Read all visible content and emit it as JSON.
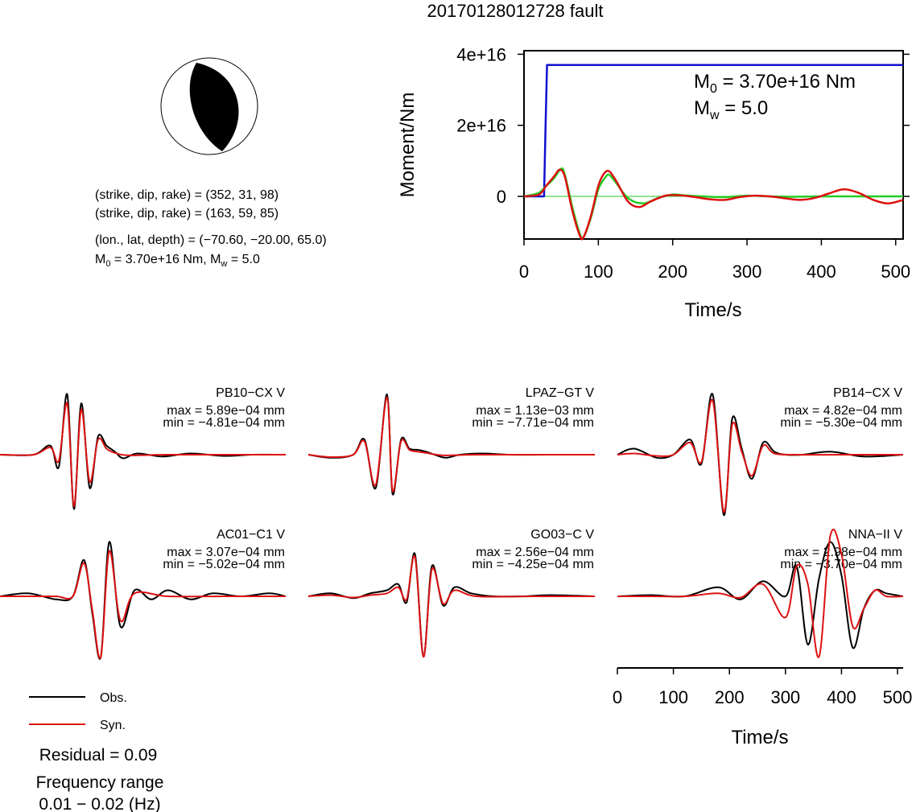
{
  "title": "20170128012728 fault",
  "mechanism": {
    "plane1": "(strike, dip, rake) = (352, 31, 98)",
    "plane2": "(strike, dip, rake) = (163, 59, 85)",
    "location": "(lon., lat, depth) = (−70.60, −20.00, 65.0)",
    "moment_pre": "M",
    "moment_sub": "0",
    "moment_post": " = 3.70e+16 Nm, M",
    "moment_sub2": "w",
    "moment_end": " = 5.0"
  },
  "moment_chart": {
    "ylabel": "Moment/Nm",
    "xlabel": "Time/s",
    "m0_sym": "M",
    "m0_sub": "0",
    "m0_val": " = 3.70e+16 Nm",
    "mw_sym": "M",
    "mw_sub": "w",
    "mw_val": " = 5.0",
    "colors": {
      "cumulative": "#1010d0",
      "rate_green": "#22cc22",
      "rate_red": "#dd1111"
    }
  },
  "chart_data": [
    {
      "type": "line",
      "name": "moment-function",
      "xlabel": "Time/s",
      "ylabel": "Moment/Nm",
      "xlim": [
        0,
        510
      ],
      "ylim": [
        -1.2e+16,
        4.1e+16
      ],
      "x_ticks": [
        0,
        100,
        200,
        300,
        400,
        500
      ],
      "x_tick_labels": [
        "0",
        "100",
        "200",
        "300",
        "400",
        "500"
      ],
      "y_ticks": [
        0,
        2e+16,
        4e+16
      ],
      "y_tick_labels": [
        "0",
        "2e+16",
        "4e+16"
      ],
      "series": [
        {
          "color": "#1010d0",
          "x": [
            0,
            27,
            29,
            31,
            510
          ],
          "y": [
            0,
            0,
            2e+16,
            3.7e+16,
            3.7e+16
          ]
        },
        {
          "color": "#22cc22",
          "x": [
            0,
            20,
            30,
            40,
            50,
            55,
            65,
            75,
            80,
            90,
            100,
            110,
            115,
            125,
            140,
            160,
            180,
            200,
            215,
            240,
            270,
            300,
            330,
            360,
            400,
            450,
            510
          ],
          "y": [
            0,
            1000000000000000.0,
            3000000000000000.0,
            5000000000000000.0,
            7800000000000000.0,
            6000000000000000.0,
            -3000000000000000.0,
            -1.05e+16,
            -1.15e+16,
            -6000000000000000.0,
            2000000000000000.0,
            5500000000000000.0,
            6000000000000000.0,
            3500000000000000.0,
            -500000000000000.0,
            -2000000000000000.0,
            -500000000000000.0,
            500000000000000.0,
            300000000000000.0,
            0.0,
            -200000000000000.0,
            200000000000000.0,
            0.0,
            -100000000000000.0,
            0.0,
            0.0,
            0.0
          ]
        },
        {
          "color": "#dd1111",
          "x": [
            0,
            20,
            30,
            40,
            48,
            55,
            65,
            75,
            80,
            90,
            100,
            108,
            115,
            125,
            140,
            155,
            170,
            190,
            210,
            230,
            250,
            270,
            290,
            310,
            330,
            350,
            370,
            390,
            410,
            430,
            450,
            470,
            490,
            510
          ],
          "y": [
            0,
            500000000000000.0,
            3000000000000000.0,
            5500000000000000.0,
            7500000000000000.0,
            5500000000000000.0,
            -4000000000000000.0,
            -1.1e+16,
            -1.15e+16,
            -5500000000000000.0,
            3000000000000000.0,
            6500000000000000.0,
            7000000000000000.0,
            4000000000000000.0,
            -1500000000000000.0,
            -3000000000000000.0,
            -1500000000000000.0,
            200000000000000.0,
            300000000000000.0,
            -200000000000000.0,
            -800000000000000.0,
            -1000000000000000.0,
            -200000000000000.0,
            200000000000000.0,
            0.0,
            -500000000000000.0,
            -1000000000000000.0,
            -500000000000000.0,
            800000000000000.0,
            2000000000000000.0,
            1000000000000000.0,
            -1000000000000000.0,
            -2000000000000000.0,
            -1000000000000000.0
          ]
        }
      ]
    },
    {
      "type": "line",
      "name": "waveforms",
      "xlabel": "Time/s",
      "xlim": [
        0,
        510
      ],
      "x_ticks": [
        0,
        100,
        200,
        300,
        400,
        500
      ],
      "x_tick_labels": [
        "0",
        "100",
        "200",
        "300",
        "400",
        "500"
      ],
      "stations": [
        {
          "label": "PB10−CX V",
          "max": "max = 5.89e−04 mm",
          "min": "min = −4.81e−04 mm",
          "col": 0,
          "row": 0,
          "obs": {
            "x": [
              0,
              60,
              90,
              105,
              120,
              132,
              145,
              160,
              175,
              190,
              205,
              220,
              245,
              290,
              340,
              400,
              450,
              510
            ],
            "y": [
              0,
              0,
              0.15,
              -0.2,
              1.0,
              -0.9,
              0.85,
              -0.55,
              0.3,
              0.15,
              0.05,
              -0.06,
              0.02,
              -0.03,
              0.02,
              -0.02,
              0.0,
              0.0
            ]
          },
          "syn": {
            "x": [
              0,
              60,
              90,
              105,
              120,
              132,
              145,
              160,
              175,
              190,
              205,
              230,
              300,
              400,
              510
            ],
            "y": [
              0,
              0,
              0.12,
              -0.1,
              0.85,
              -0.85,
              0.75,
              -0.45,
              0.25,
              0.1,
              0.03,
              -0.01,
              0.0,
              0.0,
              0.0
            ]
          }
        },
        {
          "label": "LPAZ−GT V",
          "max": "max = 1.13e−03 mm",
          "min": "min = −7.71e−04 mm",
          "col": 1,
          "row": 0,
          "obs": {
            "x": [
              0,
              40,
              80,
              100,
              120,
              140,
              150,
              165,
              180,
              195,
              210,
              225,
              245,
              270,
              310,
              360,
              420,
              510
            ],
            "y": [
              0,
              -0.05,
              0.0,
              0.25,
              -0.55,
              1.0,
              -0.65,
              0.25,
              0.1,
              0.08,
              0.05,
              0.0,
              -0.05,
              0.0,
              0.02,
              0.0,
              0.0,
              0.0
            ]
          },
          "syn": {
            "x": [
              0,
              40,
              80,
              100,
              120,
              140,
              150,
              165,
              180,
              195,
              210,
              240,
              300,
              400,
              510
            ],
            "y": [
              0,
              -0.04,
              0.0,
              0.22,
              -0.5,
              0.95,
              -0.6,
              0.22,
              0.08,
              0.05,
              0.03,
              -0.01,
              0.0,
              0.0,
              0.0
            ]
          }
        },
        {
          "label": "PB14−CX V",
          "max": "max = 4.82e−04 mm",
          "min": "min = −5.30e−04 mm",
          "col": 2,
          "row": 0,
          "obs": {
            "x": [
              0,
              30,
              70,
              100,
              130,
              150,
              170,
              190,
              205,
              222,
              240,
              260,
              280,
              300,
              330,
              380,
              440,
              510
            ],
            "y": [
              0,
              0.1,
              -0.05,
              0.0,
              0.25,
              -0.15,
              1.0,
              -1.0,
              0.6,
              0.1,
              -0.4,
              0.2,
              0.05,
              0.0,
              0.0,
              0.05,
              -0.03,
              0.0
            ]
          },
          "syn": {
            "x": [
              0,
              30,
              70,
              100,
              130,
              150,
              170,
              190,
              205,
              222,
              240,
              260,
              280,
              320,
              400,
              510
            ],
            "y": [
              0,
              0.02,
              -0.02,
              0.0,
              0.2,
              -0.12,
              0.9,
              -0.95,
              0.5,
              0.05,
              -0.35,
              0.15,
              0.02,
              0.0,
              0.0,
              0.0
            ]
          }
        },
        {
          "label": "AC01−C1 V",
          "max": "max = 3.07e−04 mm",
          "min": "min = −5.02e−04 mm",
          "col": 0,
          "row": 1,
          "obs": {
            "x": [
              0,
              50,
              100,
              130,
              150,
              165,
              180,
              195,
              215,
              240,
              270,
              300,
              340,
              380,
              430,
              480,
              510
            ],
            "y": [
              0,
              0.05,
              -0.05,
              0.0,
              0.6,
              -0.3,
              -1.0,
              0.9,
              -0.5,
              0.1,
              -0.05,
              0.1,
              -0.05,
              0.05,
              0.0,
              0.05,
              0.0
            ]
          },
          "syn": {
            "x": [
              0,
              50,
              100,
              130,
              150,
              165,
              180,
              195,
              215,
              240,
              300,
              400,
              510
            ],
            "y": [
              0,
              0.0,
              0.0,
              0.0,
              0.55,
              -0.25,
              -1.0,
              0.75,
              -0.4,
              0.05,
              0.0,
              0.0,
              0.0
            ]
          }
        },
        {
          "label": "GO03−C V",
          "max": "max = 2.56e−04 mm",
          "min": "min = −4.25e−04 mm",
          "col": 1,
          "row": 1,
          "obs": {
            "x": [
              0,
              40,
              80,
              110,
              140,
              160,
              175,
              190,
              205,
              220,
              240,
              260,
              290,
              330,
              380,
              430,
              510
            ],
            "y": [
              0,
              0.05,
              -0.03,
              0.05,
              0.1,
              0.2,
              -0.1,
              0.7,
              -1.0,
              0.5,
              -0.15,
              0.15,
              0.05,
              0.0,
              0.0,
              0.02,
              0.0
            ]
          },
          "syn": {
            "x": [
              0,
              40,
              80,
              110,
              140,
              160,
              175,
              190,
              205,
              220,
              240,
              260,
              300,
              400,
              510
            ],
            "y": [
              0,
              0.02,
              -0.02,
              0.02,
              0.05,
              0.15,
              -0.05,
              0.65,
              -1.0,
              0.45,
              -0.12,
              0.1,
              0.0,
              0.0,
              0.0
            ]
          }
        },
        {
          "label": "NNA−II V",
          "max": "max = 2.98e−04 mm",
          "min": "min = −3.70e−04 mm",
          "col": 2,
          "row": 1,
          "obs": {
            "x": [
              0,
              60,
              120,
              180,
              220,
              260,
              300,
              320,
              340,
              360,
              380,
              400,
              420,
              440,
              460,
              480,
              510
            ],
            "y": [
              0,
              0.02,
              0.0,
              0.15,
              -0.05,
              0.25,
              0.0,
              0.5,
              -0.8,
              0.3,
              0.9,
              0.35,
              -0.85,
              -0.2,
              0.1,
              0.05,
              0.0
            ]
          },
          "syn": {
            "x": [
              0,
              60,
              120,
              180,
              220,
              260,
              300,
              320,
              340,
              360,
              380,
              400,
              420,
              440,
              460,
              480,
              510
            ],
            "y": [
              0,
              0.0,
              0.0,
              0.05,
              -0.02,
              0.2,
              -0.35,
              0.5,
              0.2,
              -1.0,
              1.0,
              0.7,
              -0.5,
              -0.2,
              0.1,
              0.0,
              0.0
            ]
          }
        }
      ]
    }
  ],
  "legend": {
    "obs_label": "Obs.",
    "syn_label": "Syn.",
    "obs_color": "#000000",
    "syn_color": "#dd1111"
  },
  "residual": "Residual = 0.09",
  "freq_title": "Frequency range",
  "freq_value": "0.01 − 0.02 (Hz)"
}
